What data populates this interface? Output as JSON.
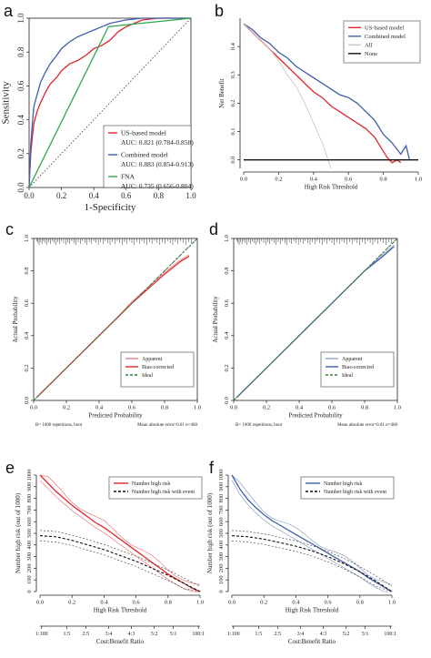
{
  "panels": {
    "a": {
      "label": "a"
    },
    "b": {
      "label": "b"
    },
    "c": {
      "label": "c",
      "footer_left": "B= 1000 repetitions, boot",
      "footer_right": "Mean absolute error=0.01 n=460"
    },
    "d": {
      "label": "d",
      "footer_left": "B= 1000 repetitions, boot",
      "footer_right": "Mean absolute error=0.01 n=460"
    },
    "e": {
      "label": "e"
    },
    "f": {
      "label": "f"
    }
  },
  "colors": {
    "us": "#e0262b",
    "combined": "#3f5fab",
    "fna": "#2ca84a",
    "all": "#c8c8c8",
    "none": "#111111",
    "ideal": "#3a7d3a"
  },
  "chart_data": [
    {
      "id": "a",
      "type": "line",
      "xlabel": "1-Specificity",
      "ylabel": "Sensitivity",
      "xlim": [
        0,
        1
      ],
      "ylim": [
        0,
        1
      ],
      "xticks": [
        "0.0",
        "0.2",
        "0.4",
        "0.6",
        "0.8",
        "1.0"
      ],
      "yticks": [
        "0.0",
        "0.2",
        "0.4",
        "0.6",
        "0.8",
        "1.0"
      ],
      "series": [
        {
          "name": "US-based model",
          "auc_text": "AUC: 0.821 (0.784-0.858)",
          "color_key": "us",
          "x": [
            0,
            0.01,
            0.02,
            0.03,
            0.05,
            0.07,
            0.1,
            0.13,
            0.17,
            0.2,
            0.25,
            0.3,
            0.35,
            0.4,
            0.45,
            0.5,
            0.55,
            0.6,
            0.65,
            0.7,
            0.8,
            0.9,
            1.0
          ],
          "y": [
            0,
            0.2,
            0.3,
            0.38,
            0.45,
            0.5,
            0.56,
            0.61,
            0.65,
            0.69,
            0.73,
            0.75,
            0.78,
            0.82,
            0.84,
            0.87,
            0.92,
            0.95,
            0.97,
            0.99,
            1.0,
            1.0,
            1.0
          ]
        },
        {
          "name": "Combined model",
          "auc_text": "AUC: 0.883 (0.854-0.913)",
          "color_key": "combined",
          "x": [
            0,
            0.01,
            0.02,
            0.03,
            0.05,
            0.07,
            0.1,
            0.13,
            0.17,
            0.2,
            0.25,
            0.3,
            0.35,
            0.4,
            0.45,
            0.5,
            0.55,
            0.6,
            0.7,
            0.8,
            1.0
          ],
          "y": [
            0,
            0.25,
            0.38,
            0.48,
            0.55,
            0.62,
            0.68,
            0.73,
            0.78,
            0.82,
            0.86,
            0.89,
            0.91,
            0.93,
            0.95,
            0.97,
            0.98,
            0.99,
            1.0,
            1.0,
            1.0
          ]
        },
        {
          "name": "FNA",
          "auc_text": "AUC: 0.735 (0.656-0.804)",
          "color_key": "fna",
          "x": [
            0,
            0.49,
            1.0
          ],
          "y": [
            0,
            0.95,
            1.0
          ]
        }
      ],
      "reference": "diagonal"
    },
    {
      "id": "b",
      "type": "line",
      "xlabel": "High Risk Threshold",
      "ylabel": "Net Benefit",
      "xlim": [
        0,
        1
      ],
      "ylim": [
        -0.03,
        0.5
      ],
      "xticks": [
        "0.0",
        "0.2",
        "0.4",
        "0.6",
        "0.8",
        "1.0"
      ],
      "yticks": [
        "0.0",
        "0.1",
        "0.2",
        "0.3",
        "0.4"
      ],
      "legend_position": "top-right",
      "series": [
        {
          "name": "US-based model",
          "color_key": "us",
          "x": [
            0,
            0.05,
            0.1,
            0.15,
            0.2,
            0.25,
            0.3,
            0.35,
            0.4,
            0.45,
            0.5,
            0.55,
            0.6,
            0.65,
            0.7,
            0.75,
            0.8,
            0.82,
            0.85,
            0.88,
            0.9
          ],
          "y": [
            0.48,
            0.45,
            0.42,
            0.39,
            0.36,
            0.33,
            0.3,
            0.27,
            0.24,
            0.22,
            0.19,
            0.17,
            0.15,
            0.13,
            0.11,
            0.08,
            0.03,
            0.01,
            -0.01,
            0.0,
            -0.01
          ]
        },
        {
          "name": "Combined model",
          "color_key": "combined",
          "x": [
            0,
            0.05,
            0.1,
            0.15,
            0.2,
            0.25,
            0.3,
            0.35,
            0.4,
            0.45,
            0.5,
            0.55,
            0.6,
            0.65,
            0.7,
            0.75,
            0.8,
            0.85,
            0.9,
            0.93,
            0.95
          ],
          "y": [
            0.48,
            0.46,
            0.43,
            0.41,
            0.38,
            0.36,
            0.33,
            0.31,
            0.29,
            0.27,
            0.25,
            0.23,
            0.22,
            0.2,
            0.17,
            0.14,
            0.09,
            0.06,
            0.02,
            0.05,
            0.0
          ]
        },
        {
          "name": "All",
          "color_key": "all",
          "x": [
            0,
            0.05,
            0.1,
            0.15,
            0.2,
            0.25,
            0.3,
            0.35,
            0.4,
            0.45,
            0.5
          ],
          "y": [
            0.48,
            0.45,
            0.42,
            0.39,
            0.35,
            0.3,
            0.26,
            0.2,
            0.13,
            0.06,
            -0.03
          ]
        },
        {
          "name": "None",
          "color_key": "none",
          "x": [
            0,
            1.0
          ],
          "y": [
            0,
            0
          ]
        }
      ]
    },
    {
      "id": "c",
      "type": "line",
      "xlabel": "Predicted Probability",
      "ylabel": "Actual Probability",
      "xlim": [
        0,
        1
      ],
      "ylim": [
        0,
        1
      ],
      "xticks": [
        "0.0",
        "0.2",
        "0.4",
        "0.6",
        "0.8",
        "1.0"
      ],
      "yticks": [
        "0.0",
        "0.2",
        "0.4",
        "0.6",
        "0.8",
        "1.0"
      ],
      "legend_position": "bottom-right",
      "series": [
        {
          "name": "Apparent",
          "color_key": "us",
          "style": "light",
          "x": [
            0.02,
            0.1,
            0.2,
            0.3,
            0.4,
            0.5,
            0.6,
            0.7,
            0.8,
            0.9,
            0.95
          ],
          "y": [
            0.02,
            0.1,
            0.2,
            0.3,
            0.4,
            0.5,
            0.61,
            0.7,
            0.79,
            0.87,
            0.9
          ]
        },
        {
          "name": "Bias-corrected",
          "color_key": "us",
          "style": "solid",
          "x": [
            0.02,
            0.1,
            0.2,
            0.3,
            0.4,
            0.5,
            0.6,
            0.7,
            0.8,
            0.9,
            0.95
          ],
          "y": [
            0.02,
            0.1,
            0.2,
            0.3,
            0.4,
            0.5,
            0.6,
            0.69,
            0.78,
            0.86,
            0.89
          ]
        },
        {
          "name": "Ideal",
          "color_key": "ideal",
          "style": "dashed",
          "x": [
            0,
            1
          ],
          "y": [
            0,
            1
          ]
        }
      ]
    },
    {
      "id": "d",
      "type": "line",
      "xlabel": "Predicted Probability",
      "ylabel": "Actual Probability",
      "xlim": [
        0,
        1
      ],
      "ylim": [
        0,
        1
      ],
      "xticks": [
        "0.0",
        "0.2",
        "0.4",
        "0.6",
        "0.8",
        "1.0"
      ],
      "yticks": [
        "0.0",
        "0.2",
        "0.4",
        "0.6",
        "0.8",
        "1.0"
      ],
      "legend_position": "bottom-right",
      "series": [
        {
          "name": "Apparent",
          "color_key": "combined",
          "style": "light",
          "x": [
            0.02,
            0.1,
            0.2,
            0.3,
            0.4,
            0.5,
            0.6,
            0.7,
            0.8,
            0.9,
            0.98
          ],
          "y": [
            0.02,
            0.1,
            0.2,
            0.3,
            0.4,
            0.5,
            0.6,
            0.7,
            0.8,
            0.89,
            0.96
          ]
        },
        {
          "name": "Bias-corrected",
          "color_key": "combined",
          "style": "solid",
          "x": [
            0.02,
            0.1,
            0.2,
            0.3,
            0.4,
            0.5,
            0.6,
            0.7,
            0.8,
            0.9,
            0.98
          ],
          "y": [
            0.02,
            0.1,
            0.2,
            0.3,
            0.4,
            0.5,
            0.6,
            0.7,
            0.8,
            0.88,
            0.95
          ]
        },
        {
          "name": "Ideal",
          "color_key": "ideal",
          "style": "dashed",
          "x": [
            0,
            1
          ],
          "y": [
            0,
            1
          ]
        }
      ]
    },
    {
      "id": "e",
      "type": "line",
      "xlabel": "High Risk Threshold",
      "ylabel": "Number high risk (out of 1000)",
      "x2label": "Cost:Benefit Ratio",
      "xlim": [
        0,
        1
      ],
      "ylim": [
        0,
        1000
      ],
      "xticks": [
        "0.0",
        "0.2",
        "0.4",
        "0.6",
        "0.8",
        "1.0"
      ],
      "yticks": [
        "0",
        "100",
        "200",
        "300",
        "400",
        "500",
        "600",
        "700",
        "800",
        "900",
        "1000"
      ],
      "x2ticks": [
        "1:100",
        "1:5",
        "2:5",
        "3:4",
        "4:3",
        "5:2",
        "5:1",
        "100:1"
      ],
      "legend_position": "top-right",
      "series": [
        {
          "name": "Number high risk",
          "color_key": "us",
          "style": "solid",
          "x": [
            0,
            0.05,
            0.1,
            0.15,
            0.2,
            0.25,
            0.3,
            0.35,
            0.4,
            0.45,
            0.5,
            0.55,
            0.6,
            0.65,
            0.7,
            0.75,
            0.8,
            0.85,
            0.9,
            0.95,
            1.0
          ],
          "y": [
            1000,
            930,
            860,
            800,
            740,
            690,
            640,
            590,
            550,
            500,
            450,
            400,
            350,
            300,
            250,
            200,
            150,
            110,
            70,
            30,
            0
          ]
        },
        {
          "name": "Number high risk with event",
          "color_key": "none",
          "style": "dashed",
          "x": [
            0,
            0.1,
            0.2,
            0.3,
            0.4,
            0.5,
            0.6,
            0.7,
            0.8,
            0.9,
            1.0
          ],
          "y": [
            480,
            470,
            440,
            400,
            360,
            310,
            260,
            200,
            140,
            70,
            0
          ]
        }
      ]
    },
    {
      "id": "f",
      "type": "line",
      "xlabel": "High Risk Threshold",
      "ylabel": "Number high risk (out of 1000)",
      "x2label": "Cost:Benefit Ratio",
      "xlim": [
        0,
        1
      ],
      "ylim": [
        0,
        1000
      ],
      "xticks": [
        "0.0",
        "0.2",
        "0.4",
        "0.6",
        "0.8",
        "1.0"
      ],
      "yticks": [
        "0",
        "100",
        "200",
        "300",
        "400",
        "500",
        "600",
        "700",
        "800",
        "900",
        "1000"
      ],
      "x2ticks": [
        "1:100",
        "1:5",
        "2:5",
        "3:4",
        "4:3",
        "5:2",
        "5:1",
        "100:1"
      ],
      "legend_position": "top-right",
      "series": [
        {
          "name": "Number high risk",
          "color_key": "combined",
          "style": "solid",
          "x": [
            0,
            0.05,
            0.1,
            0.15,
            0.2,
            0.25,
            0.3,
            0.35,
            0.4,
            0.45,
            0.5,
            0.55,
            0.6,
            0.65,
            0.7,
            0.75,
            0.8,
            0.85,
            0.9,
            0.95,
            1.0
          ],
          "y": [
            1000,
            880,
            790,
            720,
            660,
            610,
            570,
            530,
            490,
            450,
            410,
            370,
            330,
            290,
            250,
            210,
            170,
            120,
            80,
            40,
            0
          ]
        },
        {
          "name": "Number high risk with event",
          "color_key": "none",
          "style": "dashed",
          "x": [
            0,
            0.1,
            0.2,
            0.3,
            0.4,
            0.5,
            0.6,
            0.7,
            0.8,
            0.9,
            1.0
          ],
          "y": [
            480,
            470,
            450,
            420,
            390,
            350,
            300,
            240,
            170,
            90,
            0
          ]
        }
      ]
    }
  ]
}
